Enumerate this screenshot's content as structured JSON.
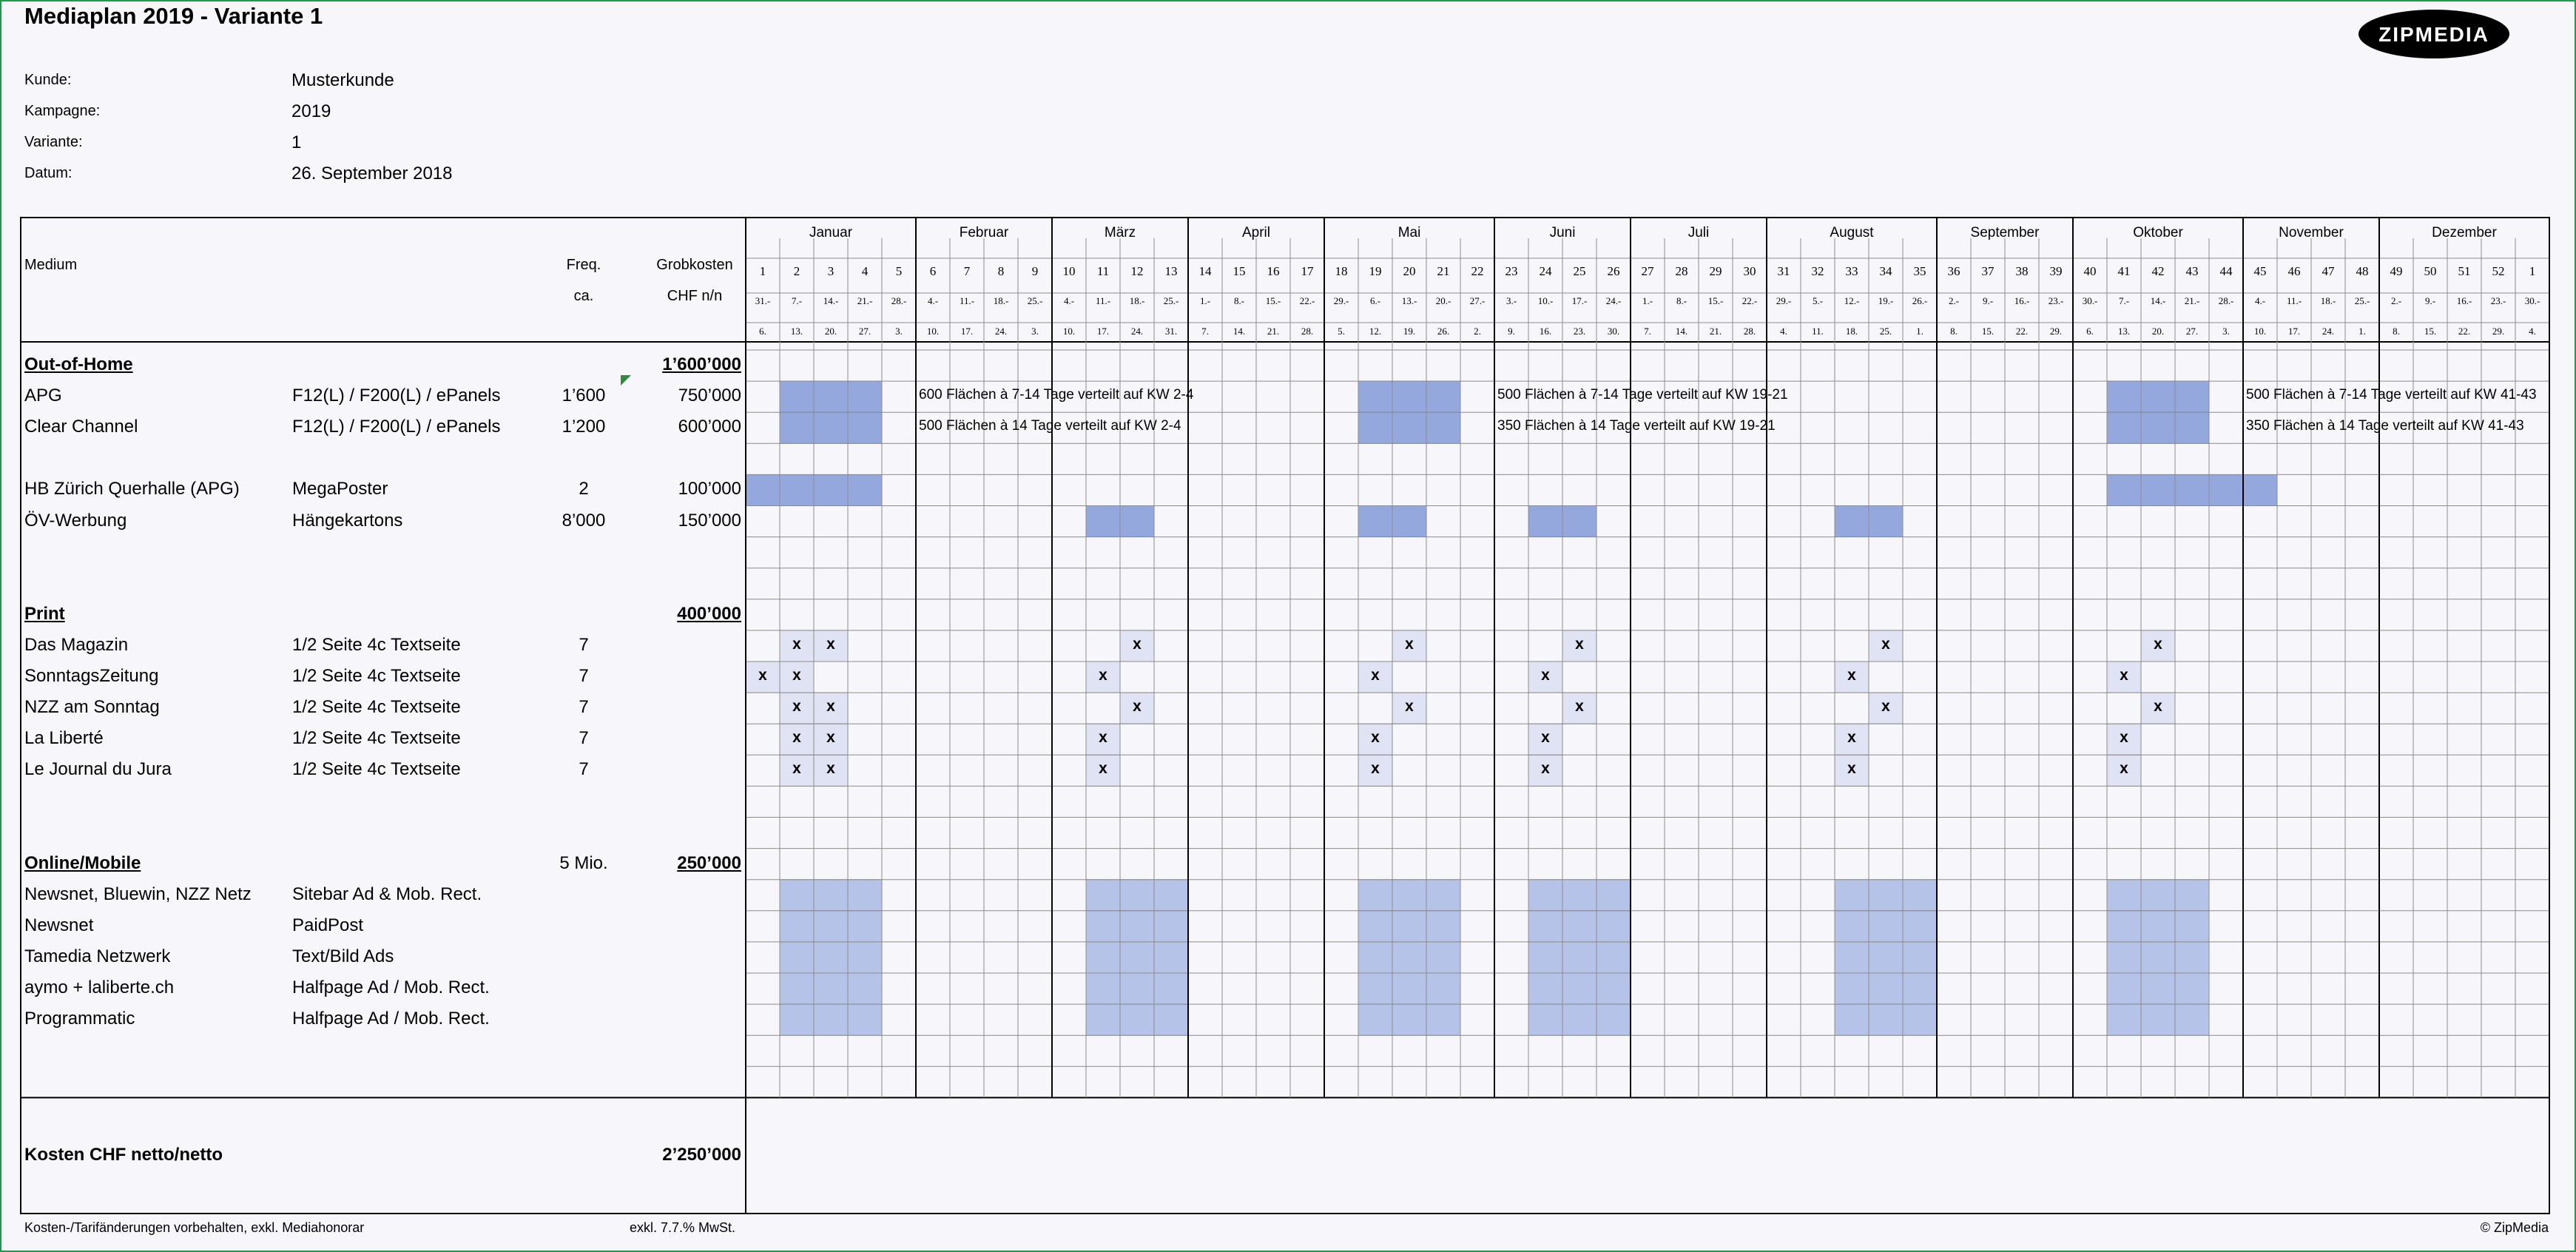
{
  "title": "Mediaplan 2019 - Variante 1",
  "logo": {
    "text": "ZIPMEDIA",
    "icon": "zipmedia-logo-icon"
  },
  "meta": [
    {
      "label": "Kunde:",
      "value": "Musterkunde"
    },
    {
      "label": "Kampagne:",
      "value": "2019"
    },
    {
      "label": "Variante:",
      "value": "1"
    },
    {
      "label": "Datum:",
      "value": "26. September 2018"
    }
  ],
  "header": {
    "medium": "Medium",
    "freq": "Freq.",
    "freq_sub": "ca.",
    "cost": "Grobkosten",
    "cost_sub": "CHF n/n"
  },
  "months": [
    {
      "name": "Januar",
      "weeks": 5
    },
    {
      "name": "Februar",
      "weeks": 4
    },
    {
      "name": "März",
      "weeks": 4
    },
    {
      "name": "April",
      "weeks": 4
    },
    {
      "name": "Mai",
      "weeks": 5
    },
    {
      "name": "Juni",
      "weeks": 4
    },
    {
      "name": "Juli",
      "weeks": 4
    },
    {
      "name": "August",
      "weeks": 5
    },
    {
      "name": "September",
      "weeks": 4
    },
    {
      "name": "Oktober",
      "weeks": 5
    },
    {
      "name": "November",
      "weeks": 4
    },
    {
      "name": "Dezember",
      "weeks": 5
    }
  ],
  "week_numbers": [
    "1",
    "2",
    "3",
    "4",
    "5",
    "6",
    "7",
    "8",
    "9",
    "10",
    "11",
    "12",
    "13",
    "14",
    "15",
    "16",
    "17",
    "18",
    "19",
    "20",
    "21",
    "22",
    "23",
    "24",
    "25",
    "26",
    "27",
    "28",
    "29",
    "30",
    "31",
    "32",
    "33",
    "34",
    "35",
    "36",
    "37",
    "38",
    "39",
    "40",
    "41",
    "42",
    "43",
    "44",
    "45",
    "46",
    "47",
    "48",
    "49",
    "50",
    "51",
    "52",
    "1"
  ],
  "week_starts": [
    "31.-",
    "7.-",
    "14.-",
    "21.-",
    "28.-",
    "4.-",
    "11.-",
    "18.-",
    "25.-",
    "4.-",
    "11.-",
    "18.-",
    "25.-",
    "1.-",
    "8.-",
    "15.-",
    "22.-",
    "29.-",
    "6.-",
    "13.-",
    "20.-",
    "27.-",
    "3.-",
    "10.-",
    "17.-",
    "24.-",
    "1.-",
    "8.-",
    "15.-",
    "22.-",
    "29.-",
    "5.-",
    "12.-",
    "19.-",
    "26.-",
    "2.-",
    "9.-",
    "16.-",
    "23.-",
    "30.-",
    "7.-",
    "14.-",
    "21.-",
    "28.-",
    "4.-",
    "11.-",
    "18.-",
    "25.-",
    "2.-",
    "9.-",
    "16.-",
    "23.-",
    "30.-"
  ],
  "week_ends": [
    "6.",
    "13.",
    "20.",
    "27.",
    "3.",
    "10.",
    "17.",
    "24.",
    "3.",
    "10.",
    "17.",
    "24.",
    "31.",
    "7.",
    "14.",
    "21.",
    "28.",
    "5.",
    "12.",
    "19.",
    "26.",
    "2.",
    "9.",
    "16.",
    "23.",
    "30.",
    "7.",
    "14.",
    "21.",
    "28.",
    "4.",
    "11.",
    "18.",
    "25.",
    "1.",
    "8.",
    "15.",
    "22.",
    "29.",
    "6.",
    "13.",
    "20.",
    "27.",
    "3.",
    "10.",
    "17.",
    "24.",
    "1.",
    "8.",
    "15.",
    "22.",
    "29.",
    "4."
  ],
  "rows": [
    {
      "type": "section",
      "label": "Out-of-Home",
      "cost": "1’600’000"
    },
    {
      "medium": "APG",
      "format": "F12(L) / F200(L) / ePanels",
      "freq": "1’600",
      "cost": "750’000",
      "bars": [
        [
          1,
          4
        ],
        [
          18,
          21
        ],
        [
          40,
          43
        ]
      ],
      "notes": [
        {
          "week": 5,
          "text": "600 Flächen à 7-14 Tage verteilt auf KW 2-4"
        },
        {
          "week": 22,
          "text": "500 Flächen à 7-14 Tage verteilt auf KW 19-21"
        },
        {
          "week": 44,
          "text": "500 Flächen à 7-14 Tage verteilt auf KW 41-43"
        }
      ]
    },
    {
      "medium": "Clear Channel",
      "format": "F12(L) / F200(L) / ePanels",
      "freq": "1’200",
      "cost": "600’000",
      "bars": [
        [
          1,
          4
        ],
        [
          18,
          21
        ],
        [
          40,
          43
        ]
      ],
      "notes": [
        {
          "week": 5,
          "text": "500 Flächen à 14 Tage verteilt auf KW 2-4"
        },
        {
          "week": 22,
          "text": "350 Flächen à 14 Tage verteilt auf KW 19-21"
        },
        {
          "week": 44,
          "text": "350 Flächen à 14 Tage verteilt auf KW 41-43"
        }
      ]
    },
    {
      "type": "blank"
    },
    {
      "medium": "HB Zürich Querhalle (APG)",
      "format": "MegaPoster",
      "freq": "2",
      "cost": "100’000",
      "bars": [
        [
          0,
          4
        ],
        [
          40,
          45
        ]
      ]
    },
    {
      "medium": "ÖV-Werbung",
      "format": "Hängekartons",
      "freq": "8’000",
      "cost": "150’000",
      "bars": [
        [
          10,
          12
        ],
        [
          18,
          20
        ],
        [
          23,
          25
        ],
        [
          32,
          34
        ]
      ]
    },
    {
      "type": "blank"
    },
    {
      "type": "blank"
    },
    {
      "type": "section",
      "label": "Print",
      "cost": "400’000"
    },
    {
      "medium": "Das Magazin",
      "format": "1/2 Seite 4c Textseite",
      "freq": "7",
      "x": [
        1,
        2,
        11,
        19,
        24,
        33,
        41
      ]
    },
    {
      "medium": "SonntagsZeitung",
      "format": "1/2 Seite 4c Textseite",
      "freq": "7",
      "x": [
        0,
        1,
        10,
        18,
        23,
        32,
        40
      ]
    },
    {
      "medium": "NZZ am Sonntag",
      "format": "1/2 Seite 4c Textseite",
      "freq": "7",
      "x": [
        1,
        2,
        11,
        19,
        24,
        33,
        41
      ]
    },
    {
      "medium": "La Liberté",
      "format": "1/2 Seite 4c Textseite",
      "freq": "7",
      "x": [
        1,
        2,
        10,
        18,
        23,
        32,
        40
      ]
    },
    {
      "medium": "Le Journal du Jura",
      "format": "1/2 Seite 4c Textseite",
      "freq": "7",
      "x": [
        1,
        2,
        10,
        18,
        23,
        32,
        40
      ]
    },
    {
      "type": "blank"
    },
    {
      "type": "blank"
    },
    {
      "type": "section",
      "label": "Online/Mobile",
      "freq": "5 Mio.",
      "cost": "250’000"
    },
    {
      "medium": "Newsnet, Bluewin, NZZ Netz",
      "format": "Sitebar Ad & Mob. Rect.",
      "light": [
        [
          1,
          4
        ],
        [
          10,
          13
        ],
        [
          18,
          21
        ],
        [
          23,
          26
        ],
        [
          32,
          35
        ],
        [
          40,
          43
        ]
      ]
    },
    {
      "medium": "Newsnet",
      "format": "PaidPost",
      "light": [
        [
          1,
          4
        ],
        [
          10,
          13
        ],
        [
          18,
          21
        ],
        [
          23,
          26
        ],
        [
          32,
          35
        ],
        [
          40,
          43
        ]
      ]
    },
    {
      "medium": "Tamedia Netzwerk",
      "format": "Text/Bild Ads",
      "light": [
        [
          1,
          4
        ],
        [
          10,
          13
        ],
        [
          18,
          21
        ],
        [
          23,
          26
        ],
        [
          32,
          35
        ],
        [
          40,
          43
        ]
      ]
    },
    {
      "medium": "aymo + laliberte.ch",
      "format": "Halfpage Ad / Mob. Rect.",
      "light": [
        [
          1,
          4
        ],
        [
          10,
          13
        ],
        [
          18,
          21
        ],
        [
          23,
          26
        ],
        [
          32,
          35
        ],
        [
          40,
          43
        ]
      ]
    },
    {
      "medium": "Programmatic",
      "format": "Halfpage Ad / Mob. Rect.",
      "light": [
        [
          1,
          4
        ],
        [
          10,
          13
        ],
        [
          18,
          21
        ],
        [
          23,
          26
        ],
        [
          32,
          35
        ],
        [
          40,
          43
        ]
      ]
    },
    {
      "type": "blank"
    },
    {
      "type": "blank"
    }
  ],
  "total": {
    "label": "Kosten CHF netto/netto",
    "value": "2’250’000"
  },
  "footer": {
    "left": "Kosten-/Tarifänderungen vorbehalten, exkl. Mediahonorar",
    "mid": "exkl. 7.7.% MwSt.",
    "right": "© ZipMedia"
  },
  "colors": {
    "dark_bar": "#94a8dd",
    "light_bar": "#b5c3e9",
    "x_cell": "#dfe3f3",
    "grid": "#8c8c8c",
    "frame": "#1f9a4b",
    "corner_mark": "#2e8b3e"
  }
}
